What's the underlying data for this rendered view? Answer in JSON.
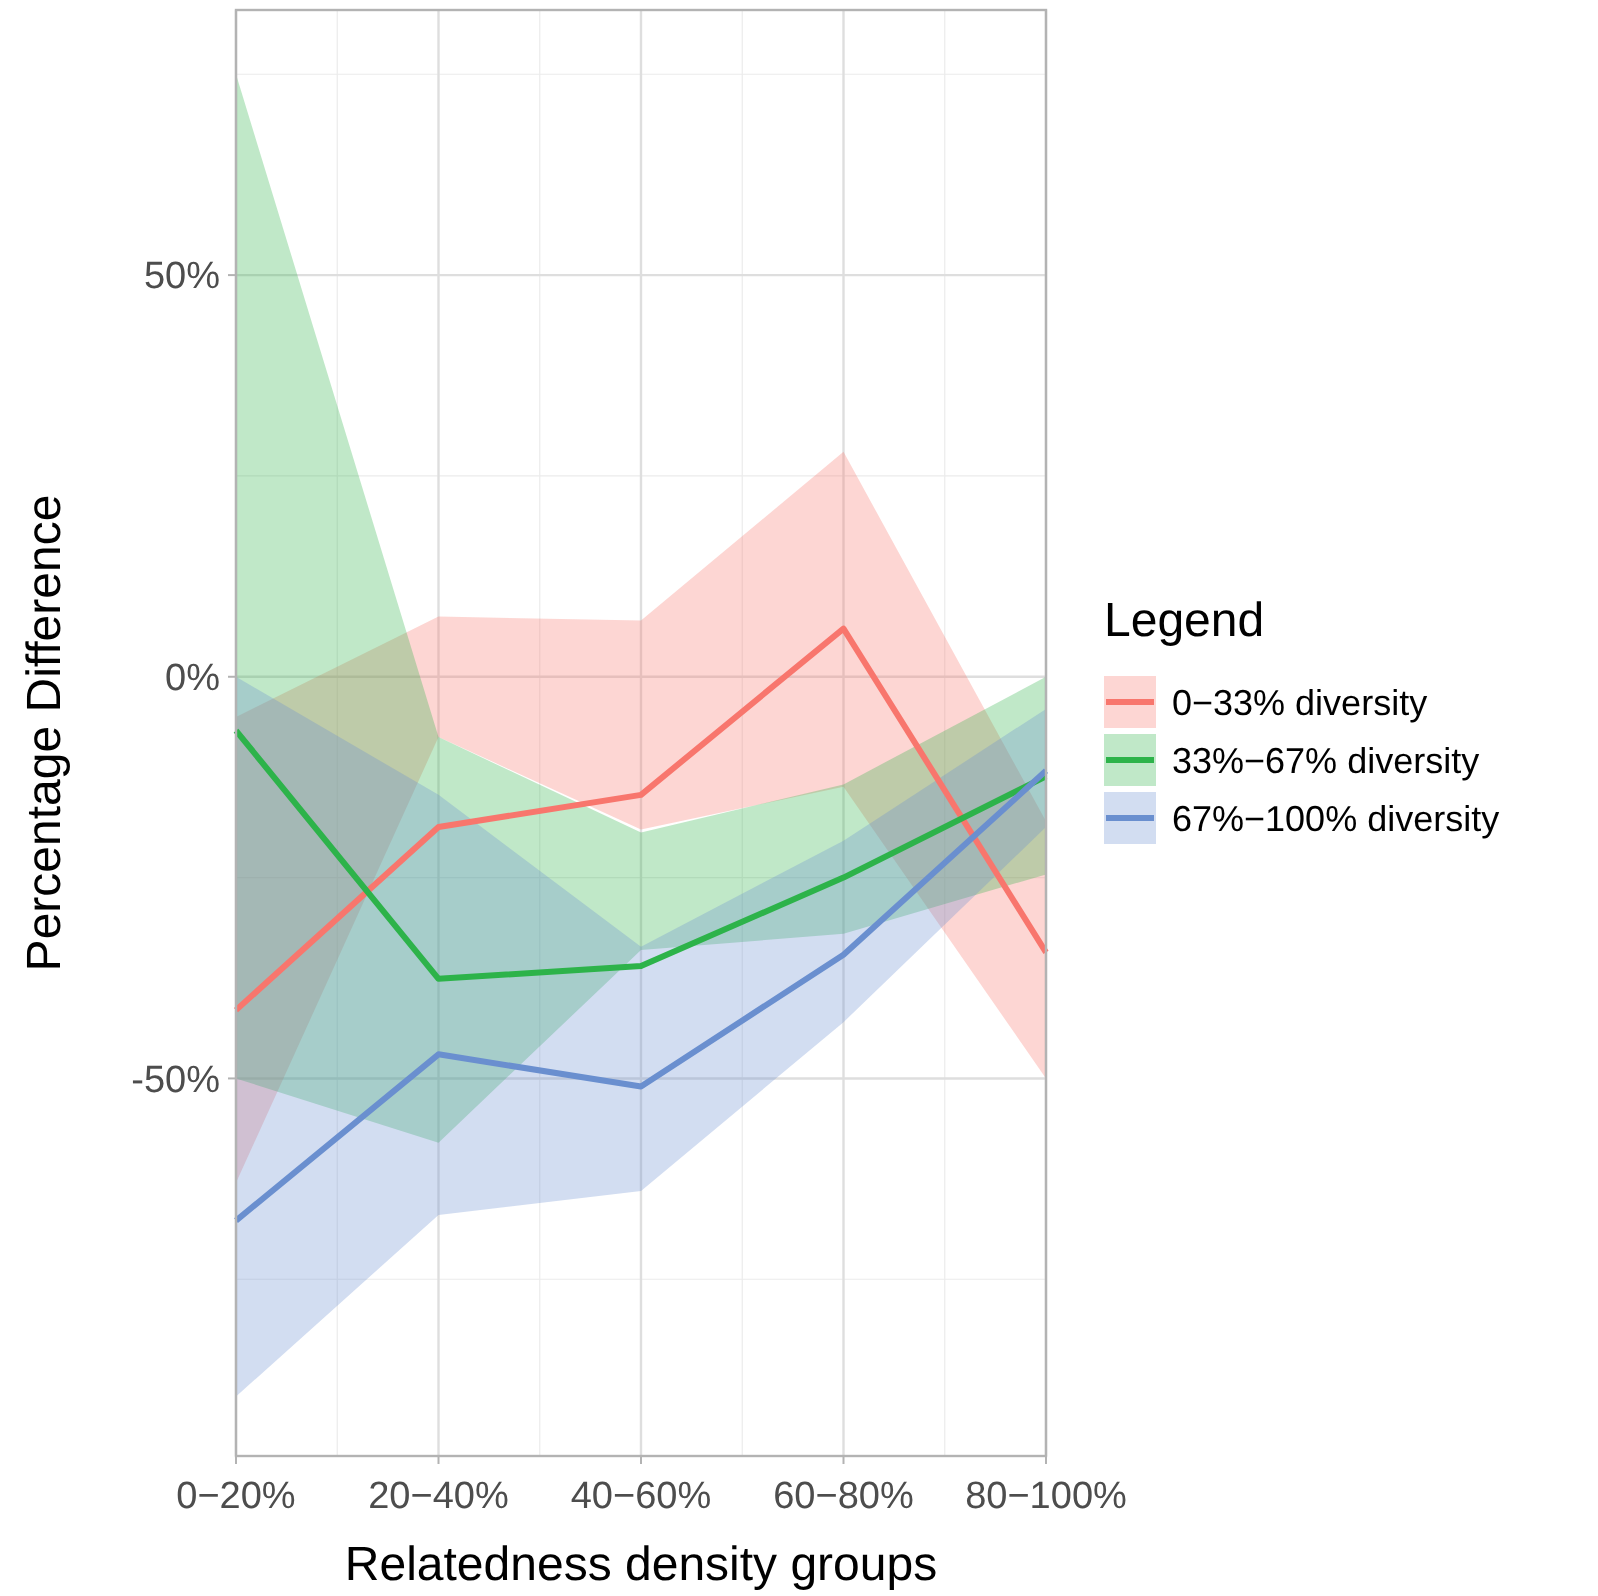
{
  "chart_data": {
    "type": "line",
    "xlabel": "Relatedness density groups",
    "ylabel": "Percentage Difference",
    "legend_title": "Legend",
    "legend": "right",
    "grid": true,
    "categories": [
      "0−20%",
      "20−40%",
      "40−60%",
      "60−80%",
      "80−100%"
    ],
    "ylim": [
      -97,
      83
    ],
    "yticks": [
      {
        "value": -50,
        "label": "-50%"
      },
      {
        "value": 0,
        "label": "0%"
      },
      {
        "value": 50,
        "label": "50%"
      }
    ],
    "series": [
      {
        "name": "0−33% diversity",
        "color": "#f8766d",
        "values": [
          -41.5,
          -18.7,
          -14.7,
          6,
          -34.3
        ],
        "lower": [
          -63,
          -7.5,
          -19,
          -13.7,
          -50
        ],
        "upper": [
          -5,
          7.5,
          7,
          28,
          -18
        ]
      },
      {
        "name": "33%−67% diversity",
        "color": "#2db34a",
        "values": [
          -6.7,
          -37.6,
          -36,
          -25,
          -12.4
        ],
        "lower": [
          -50,
          -58,
          -34,
          -32,
          -24.6
        ],
        "upper": [
          75,
          -7.5,
          -19.4,
          -13.4,
          0
        ]
      },
      {
        "name": "67%−100% diversity",
        "color": "#6a8fcf",
        "values": [
          -67.7,
          -47,
          -51,
          -34.6,
          -11.7
        ],
        "lower": [
          -89.6,
          -67,
          -64,
          -43,
          -18.7
        ],
        "upper": [
          0,
          -14.7,
          -33.6,
          -20.4,
          -4
        ]
      }
    ]
  }
}
